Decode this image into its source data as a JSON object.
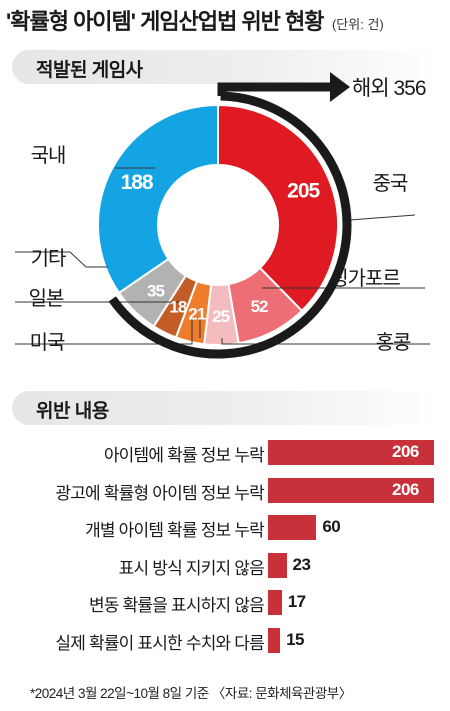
{
  "header": {
    "title": "'확률형 아이템' 게임산업법 위반 현황",
    "unit": "(단위: 건)"
  },
  "sections": {
    "donut_title": "적발된 게임사",
    "bar_title": "위반 내용"
  },
  "footnote": "*2024년 3월 22일~10월 8일 기준 〈자료: 문화체육관광부〉",
  "chart_data": [
    {
      "type": "pie",
      "title": "적발된 게임사",
      "categories": [
        "중국",
        "싱가포르",
        "홍콩",
        "미국",
        "일본",
        "기타",
        "국내"
      ],
      "values": [
        205,
        52,
        25,
        21,
        18,
        35,
        188
      ],
      "colors": [
        "#df1a22",
        "#ee6e76",
        "#f5bcc0",
        "#ee7d2e",
        "#c25d27",
        "#b2b2b2",
        "#14a4e3"
      ],
      "group": {
        "label": "해외 356",
        "name": "해외",
        "value": 356,
        "members": [
          "중국",
          "싱가포르",
          "홍콩",
          "미국",
          "일본",
          "기타"
        ]
      }
    },
    {
      "type": "bar",
      "orientation": "horizontal",
      "title": "위반 내용",
      "categories": [
        "아이템에 확률 정보 누락",
        "광고에 확률형 아이템 정보 누락",
        "개별 아이템 확률 정보 누락",
        "표시 방식 지키지 않음",
        "변동 확률을 표시하지 않음",
        "실제 확률이 표시한 수치와 다름"
      ],
      "values": [
        206,
        206,
        60,
        23,
        17,
        15
      ],
      "color": "#c8313a",
      "xlim": [
        0,
        206
      ]
    }
  ]
}
